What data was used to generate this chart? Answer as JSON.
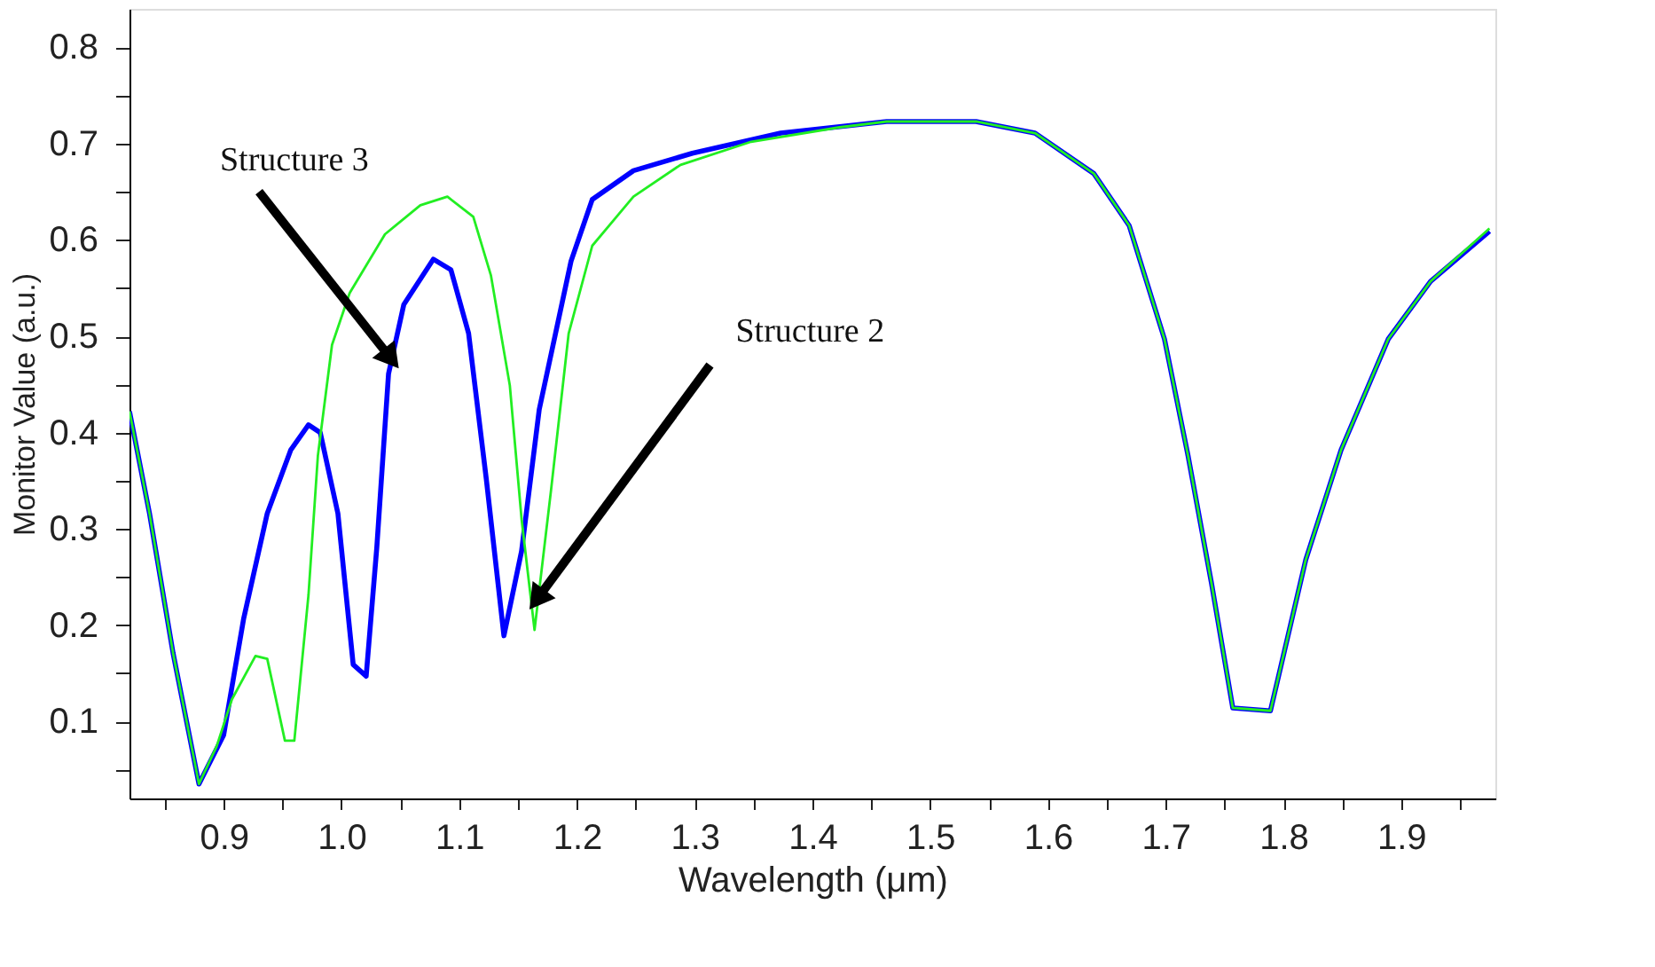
{
  "chart_data": {
    "type": "line",
    "xlabel": "Wavelength (μm)",
    "ylabel": "Monitor Value (a.u.)",
    "xlim": [
      0.82,
      1.98
    ],
    "ylim": [
      0.02,
      0.84
    ],
    "xticks": [
      {
        "value": 0.85,
        "label": null
      },
      0.9,
      {
        "value": 0.95,
        "label": null
      },
      {
        "value": 1.0,
        "label": "1.0"
      },
      {
        "value": 1.05,
        "label": null
      },
      1.1,
      {
        "value": 1.15,
        "label": null
      },
      1.2,
      {
        "value": 1.25,
        "label": null
      },
      1.3,
      {
        "value": 1.35,
        "label": null
      },
      1.4,
      {
        "value": 1.45,
        "label": null
      },
      1.5,
      {
        "value": 1.55,
        "label": null
      },
      1.6,
      {
        "value": 1.65,
        "label": null
      },
      1.7,
      {
        "value": 1.75,
        "label": null
      },
      1.8,
      {
        "value": 1.85,
        "label": null
      },
      1.9,
      {
        "value": 1.95,
        "label": null
      }
    ],
    "yticks": [
      {
        "value": 0.05,
        "label": null
      },
      0.1,
      {
        "value": 0.15,
        "label": null
      },
      0.2,
      {
        "value": 0.25,
        "label": null
      },
      0.3,
      {
        "value": 0.35,
        "label": null
      },
      0.4,
      {
        "value": 0.45,
        "label": null
      },
      0.5,
      {
        "value": 0.55,
        "label": null
      },
      0.6,
      {
        "value": 0.65,
        "label": null
      },
      0.7,
      {
        "value": 0.75,
        "label": null
      },
      0.8
    ],
    "grid": false,
    "legend": false,
    "marker": "none",
    "line_style": "solid",
    "series": [
      {
        "color": "#0000ff",
        "x": [
          0.82,
          0.837,
          0.857,
          0.879,
          0.9,
          0.917,
          0.937,
          0.957,
          0.972,
          0.982,
          0.997,
          1.01,
          1.021,
          1.03,
          1.04,
          1.053,
          1.078,
          1.093,
          1.108,
          1.123,
          1.138,
          1.153,
          1.168,
          1.195,
          1.213,
          1.248,
          1.298,
          1.373,
          1.463,
          1.539,
          1.589,
          1.639,
          1.669,
          1.699,
          1.719,
          1.739,
          1.757,
          1.789,
          1.819,
          1.849,
          1.889,
          1.925,
          1.975
        ],
        "values": [
          0.422,
          0.316,
          0.171,
          0.035,
          0.086,
          0.207,
          0.316,
          0.382,
          0.408,
          0.4,
          0.316,
          0.159,
          0.147,
          0.28,
          0.461,
          0.533,
          0.58,
          0.569,
          0.503,
          0.352,
          0.189,
          0.277,
          0.424,
          0.578,
          0.642,
          0.672,
          0.69,
          0.711,
          0.723,
          0.723,
          0.711,
          0.669,
          0.615,
          0.497,
          0.376,
          0.243,
          0.114,
          0.111,
          0.268,
          0.382,
          0.497,
          0.557,
          0.609
        ]
      },
      {
        "color": "#22ee22",
        "x": [
          0.82,
          0.837,
          0.857,
          0.879,
          0.894,
          0.907,
          0.927,
          0.937,
          0.952,
          0.96,
          0.972,
          0.98,
          0.992,
          1.007,
          1.037,
          1.067,
          1.09,
          1.112,
          1.127,
          1.143,
          1.153,
          1.164,
          1.178,
          1.193,
          1.213,
          1.248,
          1.288,
          1.348,
          1.423,
          1.463,
          1.539,
          1.589,
          1.639,
          1.669,
          1.699,
          1.719,
          1.739,
          1.757,
          1.789,
          1.819,
          1.849,
          1.889,
          1.925,
          1.975
        ],
        "values": [
          0.422,
          0.316,
          0.171,
          0.035,
          0.074,
          0.123,
          0.168,
          0.165,
          0.08,
          0.08,
          0.231,
          0.376,
          0.491,
          0.545,
          0.606,
          0.636,
          0.645,
          0.624,
          0.563,
          0.449,
          0.31,
          0.195,
          0.34,
          0.503,
          0.594,
          0.645,
          0.678,
          0.702,
          0.717,
          0.723,
          0.723,
          0.711,
          0.669,
          0.615,
          0.497,
          0.376,
          0.243,
          0.114,
          0.111,
          0.268,
          0.382,
          0.497,
          0.557,
          0.612
        ]
      }
    ],
    "annotations": [
      {
        "text": "Structure 3",
        "x": 1.04,
        "y": 0.48
      },
      {
        "text": "Structure 2",
        "x": 1.168,
        "y": 0.23
      }
    ]
  }
}
